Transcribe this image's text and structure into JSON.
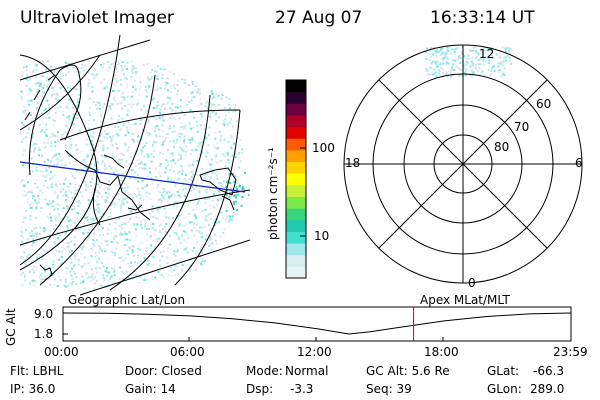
{
  "header": {
    "instrument": "Ultraviolet Imager",
    "date": "27 Aug 07",
    "time": "16:33:14 UT"
  },
  "colorbar": {
    "unit_label": "photon cm⁻²s⁻¹",
    "tick_labels": [
      "100",
      "10"
    ],
    "tick_values": [
      100,
      10
    ],
    "colors": [
      "#e6f4f4",
      "#d6eef0",
      "#9fe7ea",
      "#40e0d0",
      "#22c9b0",
      "#36d67a",
      "#7de84a",
      "#c7f03a",
      "#ffff00",
      "#ffd400",
      "#ffa000",
      "#ff5a00",
      "#e00000",
      "#b0002a",
      "#6a0040",
      "#2a0030",
      "#000000"
    ]
  },
  "polar_plot": {
    "mlt_labels": {
      "top": "12",
      "left": "18",
      "right": "6",
      "bottom": "0"
    },
    "lat_labels": [
      "60",
      "70",
      "80"
    ]
  },
  "timeline": {
    "left_title": "Geographic Lat/Lon",
    "right_title": "Apex MLat/MLT",
    "ylabel": "GC Alt",
    "y_ticks": [
      "9.0",
      "1.8"
    ],
    "x_ticks": [
      "00:00",
      "06:00",
      "12:00",
      "18:00",
      "23:59"
    ],
    "curve": {
      "x_hours": [
        0,
        2,
        4,
        6,
        8,
        10,
        12,
        13.5,
        14.5,
        16,
        18,
        20,
        22,
        23.98
      ],
      "alt_re": [
        9.0,
        8.9,
        8.6,
        8.0,
        7.0,
        5.6,
        3.6,
        1.8,
        2.6,
        4.2,
        6.3,
        7.8,
        8.7,
        9.0
      ]
    },
    "current_time_hours": 16.55
  },
  "status": {
    "filter": "Flt: LBHL",
    "door": "Door: Closed",
    "mode_label": "Mode:",
    "mode_value": "Normal",
    "gc_alt": "GC Alt: 5.6 Re",
    "glat_label": "GLat:",
    "glat_value": "-66.3",
    "ip": "IP: 36.0",
    "gain": "Gain: 14",
    "dsp_label": "Dsp:",
    "dsp_value": "-3.3",
    "seq": "Seq: 39",
    "glon_label": "GLon:",
    "glon_value": "289.0"
  }
}
